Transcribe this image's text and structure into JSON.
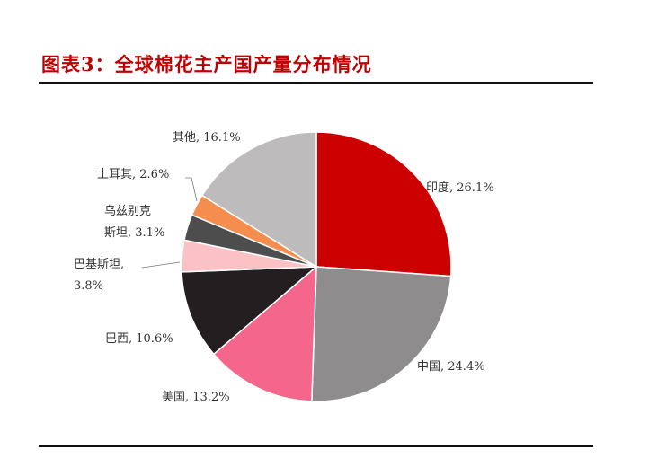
{
  "title": "图表3：全球棉花主产国产量分布情况",
  "chart_data": {
    "type": "pie",
    "slices": [
      {
        "name": "印度",
        "value": 26.1,
        "label": [
          "印度, 26.1%"
        ],
        "color": "#cc0000"
      },
      {
        "name": "中国",
        "value": 24.4,
        "label": [
          "中国, 24.4%"
        ],
        "color": "#8e8c8c"
      },
      {
        "name": "美国",
        "value": 13.2,
        "label": [
          "美国, 13.2%"
        ],
        "color": "#f4668c"
      },
      {
        "name": "巴西",
        "value": 10.6,
        "label": [
          "巴西, 10.6%"
        ],
        "color": "#231f20"
      },
      {
        "name": "巴基斯坦",
        "value": 3.8,
        "label": [
          "巴基斯坦,",
          "3.8%"
        ],
        "color": "#fbc2c6"
      },
      {
        "name": "乌兹别克斯坦",
        "value": 3.1,
        "label": [
          "乌兹别克",
          "斯坦, 3.1%"
        ],
        "color": "#4d4d4d"
      },
      {
        "name": "土耳其",
        "value": 2.6,
        "label": [
          "土耳其, 2.6%"
        ],
        "color": "#f58d4f"
      },
      {
        "name": "其他",
        "value": 16.1,
        "label": [
          "其他, 16.1%"
        ],
        "color": "#bdbbbb"
      }
    ]
  }
}
